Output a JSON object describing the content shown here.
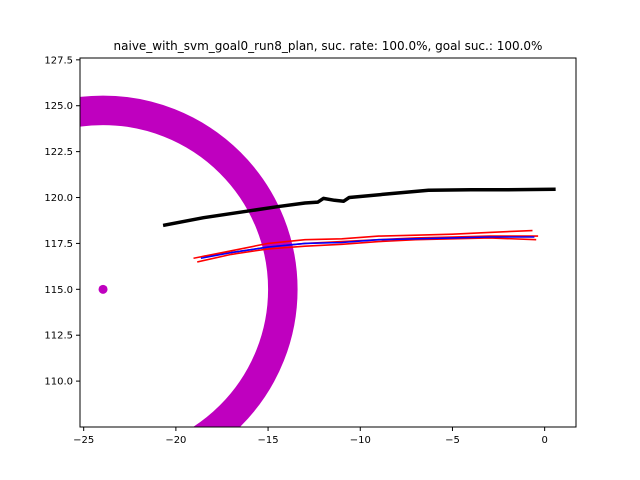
{
  "chart_data": {
    "type": "line",
    "title": "naive_with_svm_goal0_run8_plan, suc. rate: 100.0%, goal suc.: 100.0%",
    "xlabel": "",
    "ylabel": "",
    "xlim": [
      -25.2,
      1.7
    ],
    "ylim": [
      107.5,
      127.6
    ],
    "grid": false,
    "xticks": [
      -25,
      -20,
      -15,
      -10,
      -5,
      0
    ],
    "xtick_labels": [
      "−25",
      "−20",
      "−15",
      "−10",
      "−5",
      "0"
    ],
    "yticks": [
      110.0,
      112.5,
      115.0,
      117.5,
      120.0,
      122.5,
      125.0,
      127.5
    ],
    "ytick_labels": [
      "110.0",
      "112.5",
      "115.0",
      "117.5",
      "120.0",
      "122.5",
      "125.0",
      "127.5"
    ],
    "ring": {
      "center": [
        -23.95,
        115.0
      ],
      "radius_inner": 8.95,
      "radius_outer": 10.55,
      "color": "#bf00bf"
    },
    "goal_point": {
      "x": -23.95,
      "y": 115.0,
      "color": "#bf00bf"
    },
    "series": [
      {
        "color": "#000000",
        "width": 3.5,
        "x": [
          -20.6,
          -18.5,
          -16.5,
          -14.5,
          -13.0,
          -12.3,
          -12.0,
          -11.4,
          -10.9,
          -10.6,
          -8.5,
          -6.3,
          -4.0,
          -2.5,
          0.5
        ],
        "y": [
          118.5,
          118.9,
          119.2,
          119.5,
          119.7,
          119.75,
          119.95,
          119.85,
          119.8,
          120.0,
          120.2,
          120.4,
          120.42,
          120.42,
          120.45
        ]
      },
      {
        "color": "#ff0000",
        "width": 1.6,
        "x": [
          -18.8,
          -17.0,
          -15.0,
          -13.0,
          -11.0,
          -9.0,
          -7.0,
          -5.0,
          -3.0,
          -0.5
        ],
        "y": [
          116.5,
          116.9,
          117.2,
          117.35,
          117.45,
          117.6,
          117.7,
          117.75,
          117.8,
          117.7
        ]
      },
      {
        "color": "#ff0000",
        "width": 1.6,
        "x": [
          -19.0,
          -17.0,
          -15.0,
          -13.0,
          -11.0,
          -9.0,
          -7.0,
          -5.0,
          -3.0,
          -0.7
        ],
        "y": [
          116.7,
          117.1,
          117.5,
          117.7,
          117.75,
          117.9,
          117.95,
          118.0,
          118.1,
          118.2
        ]
      },
      {
        "color": "#ff0000",
        "width": 1.6,
        "x": [
          -18.5,
          -17.0,
          -15.0,
          -13.0,
          -11.0,
          -9.0,
          -7.0,
          -5.0,
          -3.0,
          -0.4
        ],
        "y": [
          116.8,
          117.0,
          117.3,
          117.5,
          117.6,
          117.7,
          117.8,
          117.85,
          117.9,
          117.9
        ]
      },
      {
        "color": "#0000ff",
        "width": 1.6,
        "x": [
          -18.6,
          -17.0,
          -15.0,
          -13.0,
          -11.0,
          -9.0,
          -7.0,
          -5.0,
          -3.0,
          -0.6
        ],
        "y": [
          116.7,
          117.0,
          117.3,
          117.5,
          117.55,
          117.7,
          117.75,
          117.8,
          117.85,
          117.85
        ]
      }
    ]
  }
}
